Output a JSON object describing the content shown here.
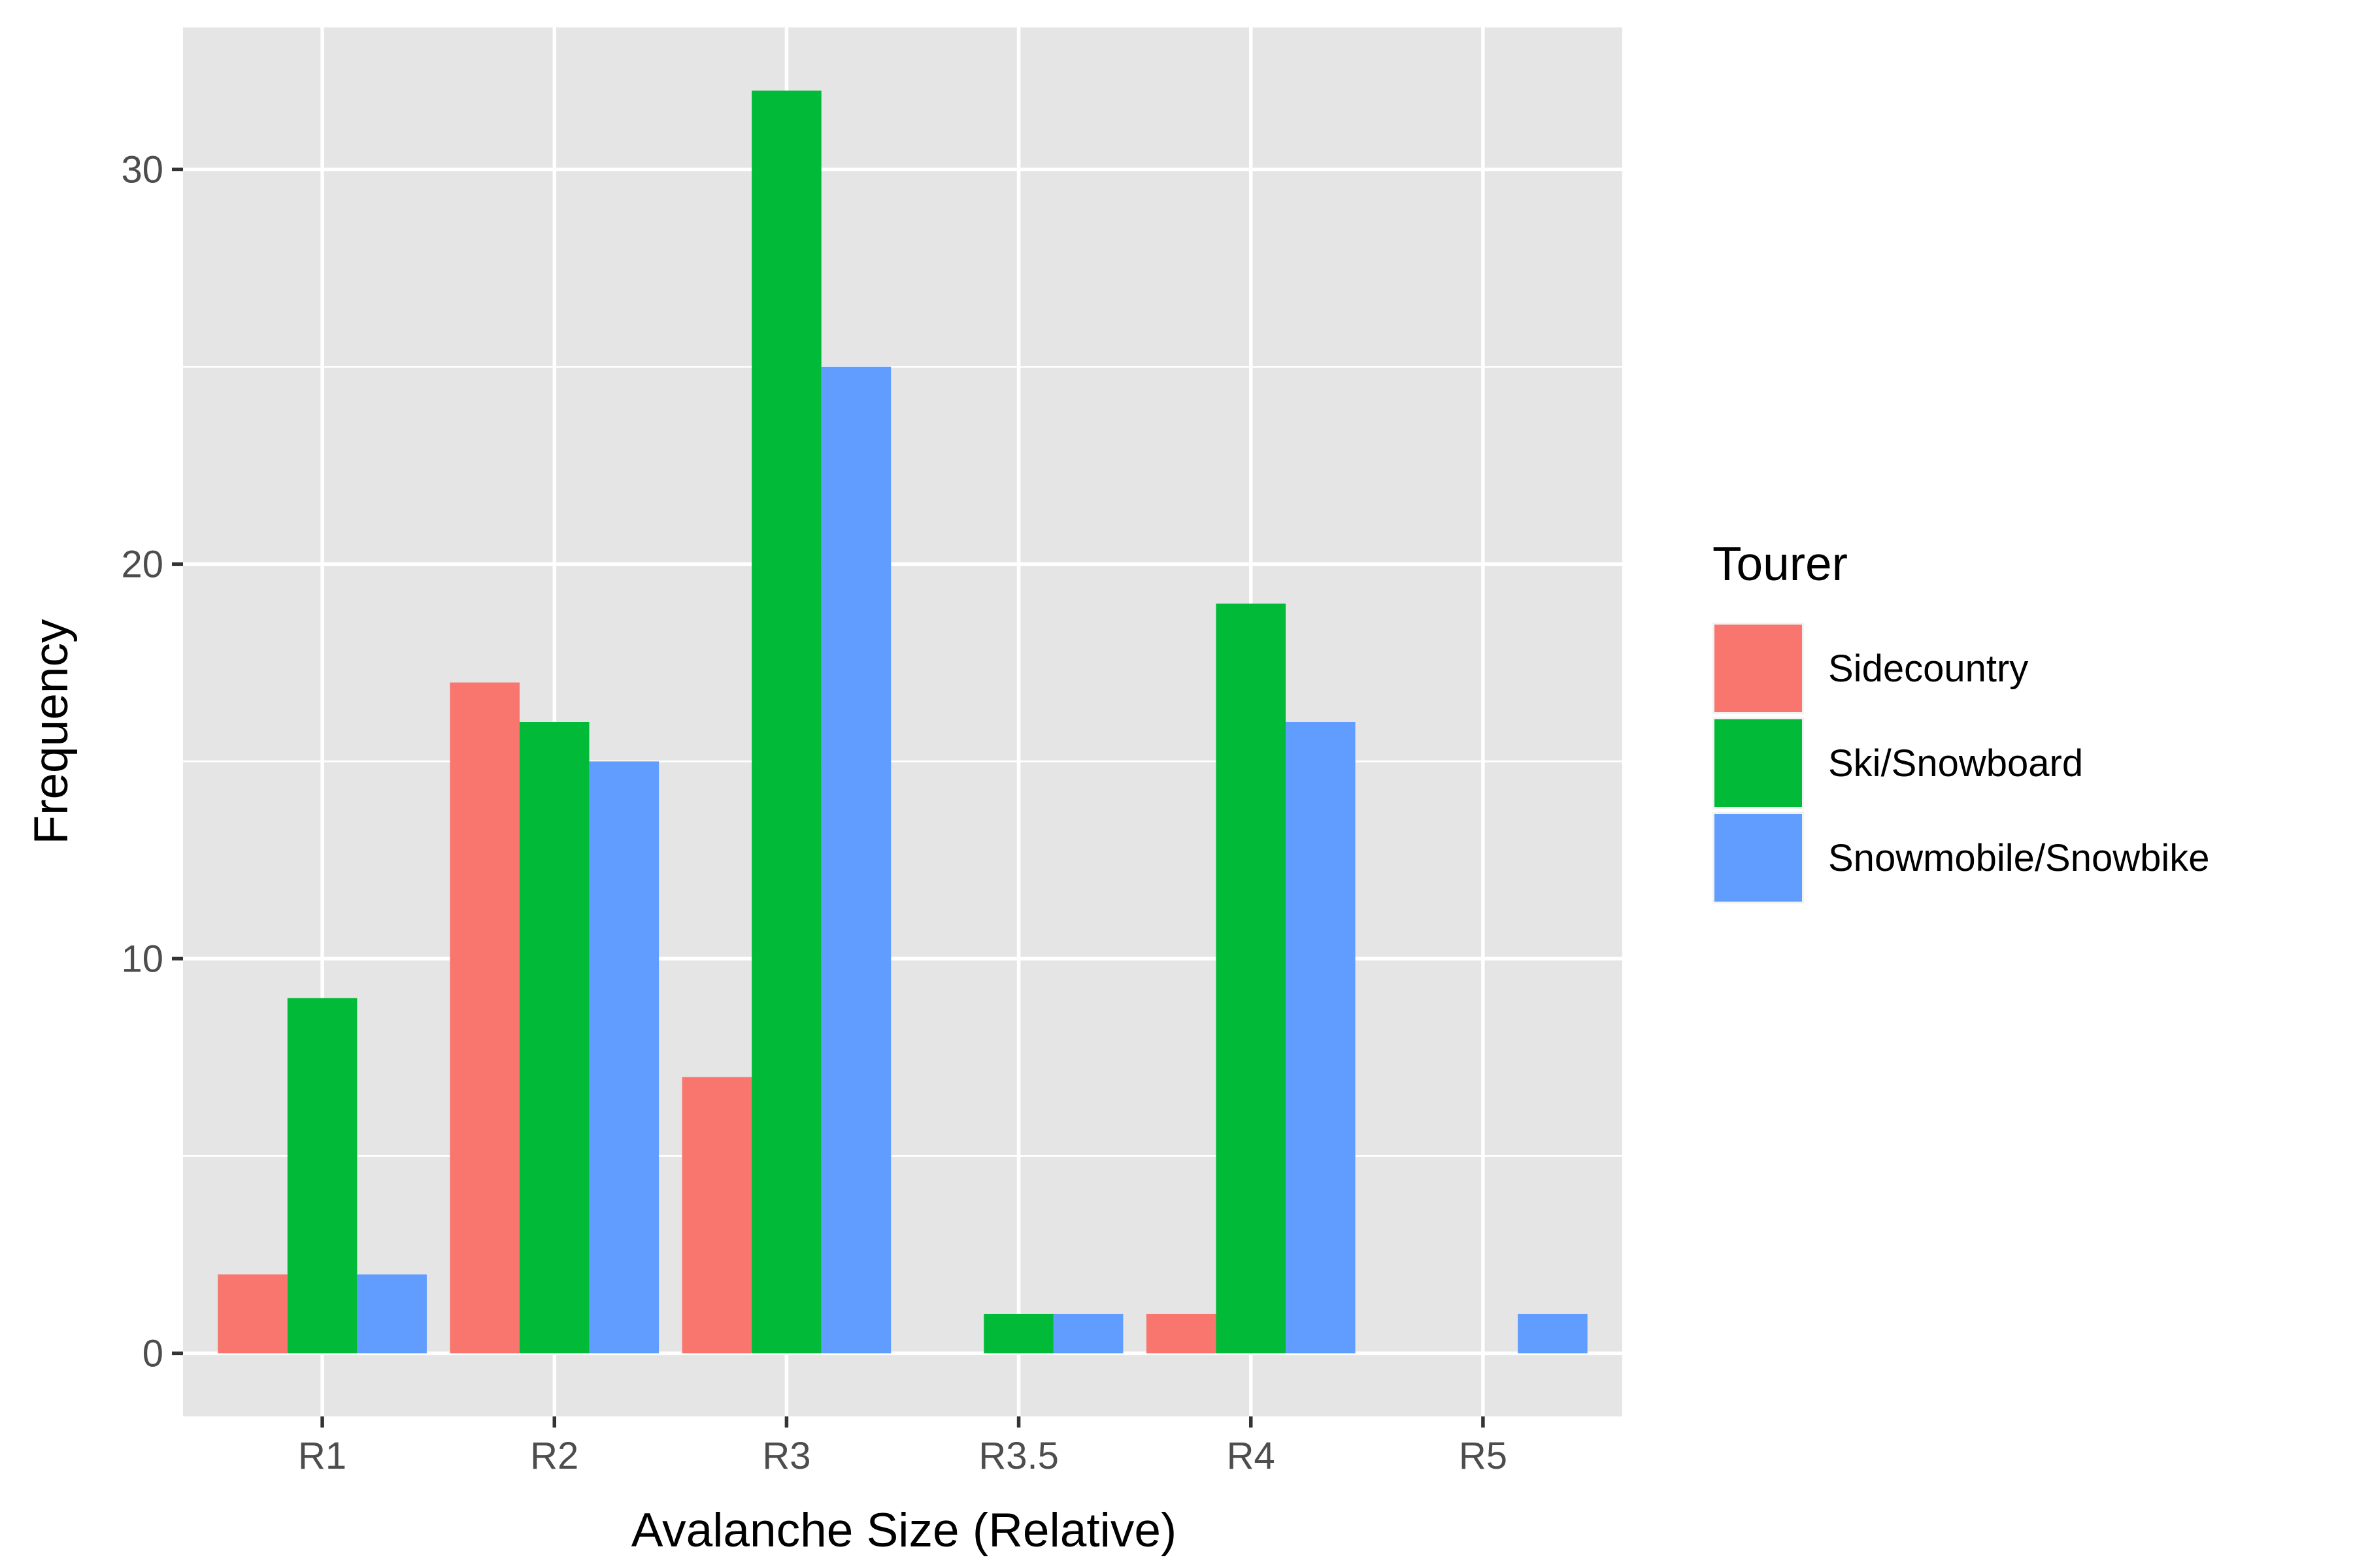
{
  "chart_data": {
    "type": "bar",
    "xlabel": "Avalanche Size (Relative)",
    "ylabel": "Frequency",
    "categories": [
      "R1",
      "R2",
      "R3",
      "R3.5",
      "R4",
      "R5"
    ],
    "ylim": [
      -1.6,
      33.6
    ],
    "y_ticks": [
      0,
      10,
      20,
      30
    ],
    "grid": true,
    "legend": {
      "title": "Tourer",
      "placement": "right"
    },
    "series": [
      {
        "name": "Sidecountry",
        "color": "#F8766D",
        "values": [
          2,
          17,
          7,
          0,
          1,
          0
        ]
      },
      {
        "name": "Ski/Snowboard",
        "color": "#00BA38",
        "values": [
          9,
          16,
          32,
          1,
          19,
          0
        ]
      },
      {
        "name": "Snowmobile/Snowbike",
        "color": "#619CFF",
        "values": [
          2,
          15,
          25,
          1,
          16,
          1
        ]
      }
    ],
    "colors": {
      "panel_background": "#E5E5E5",
      "grid": "#FFFFFF"
    }
  }
}
